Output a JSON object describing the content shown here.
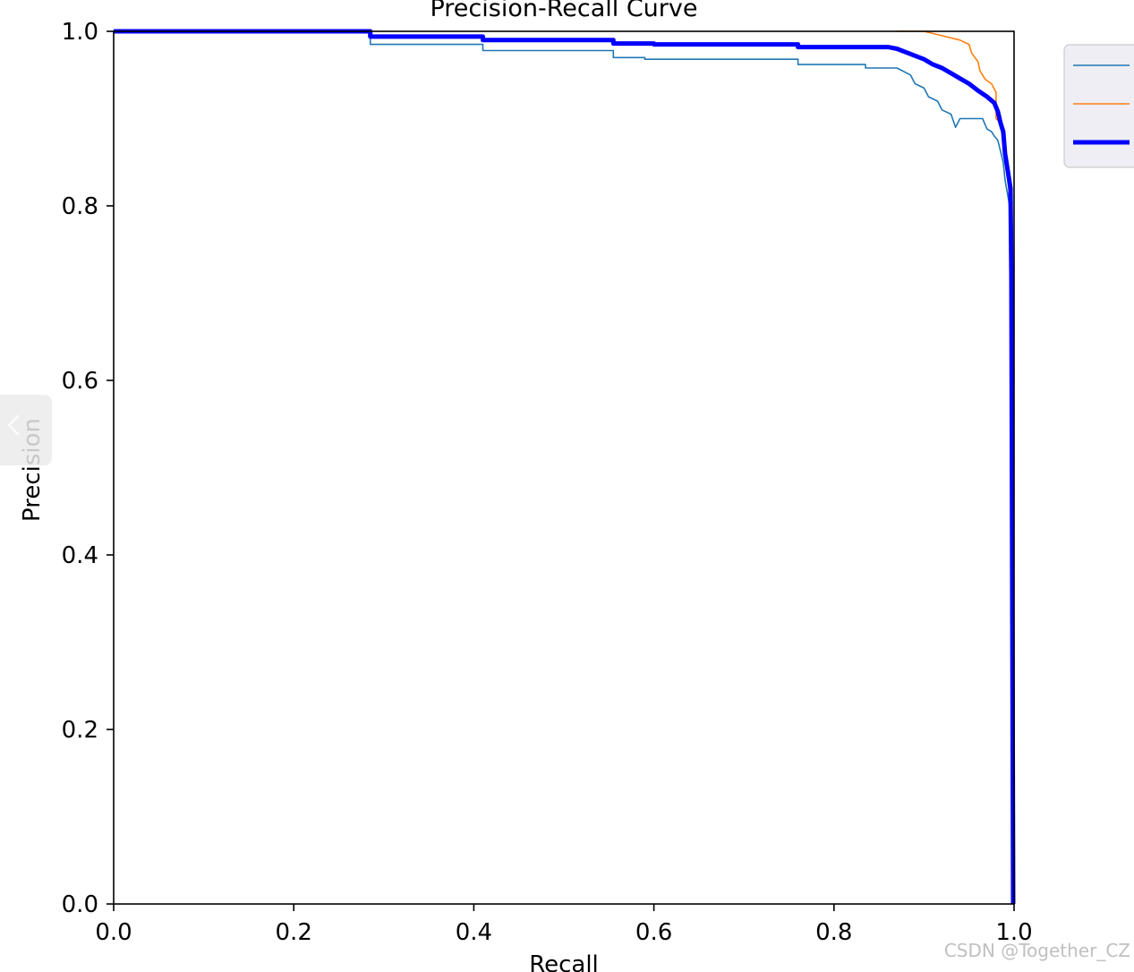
{
  "chart_data": {
    "type": "line",
    "title": "Precision-Recall Curve",
    "xlabel": "Recall",
    "ylabel": "Precision",
    "xlim": [
      0.0,
      1.0
    ],
    "ylim": [
      0.0,
      1.0
    ],
    "xticks": [
      "0.0",
      "0.2",
      "0.4",
      "0.6",
      "0.8",
      "1.0"
    ],
    "yticks": [
      "0.0",
      "0.2",
      "0.4",
      "0.6",
      "0.8",
      "1.0"
    ],
    "grid": false,
    "legend_position": "outside-top-right",
    "series": [
      {
        "color": "#1f77b4",
        "points": [
          [
            0.0,
            1.0
          ],
          [
            0.285,
            1.0
          ],
          [
            0.285,
            0.985
          ],
          [
            0.41,
            0.985
          ],
          [
            0.41,
            0.978
          ],
          [
            0.555,
            0.978
          ],
          [
            0.555,
            0.97
          ],
          [
            0.59,
            0.97
          ],
          [
            0.59,
            0.968
          ],
          [
            0.76,
            0.968
          ],
          [
            0.76,
            0.962
          ],
          [
            0.835,
            0.962
          ],
          [
            0.835,
            0.958
          ],
          [
            0.87,
            0.958
          ],
          [
            0.885,
            0.95
          ],
          [
            0.89,
            0.94
          ],
          [
            0.9,
            0.935
          ],
          [
            0.905,
            0.925
          ],
          [
            0.915,
            0.92
          ],
          [
            0.92,
            0.91
          ],
          [
            0.93,
            0.905
          ],
          [
            0.935,
            0.89
          ],
          [
            0.94,
            0.9
          ],
          [
            0.965,
            0.9
          ],
          [
            0.97,
            0.888
          ],
          [
            0.975,
            0.885
          ],
          [
            0.978,
            0.88
          ],
          [
            0.982,
            0.875
          ],
          [
            0.988,
            0.85
          ],
          [
            0.99,
            0.83
          ],
          [
            0.995,
            0.8
          ],
          [
            0.996,
            0.7
          ],
          [
            0.997,
            0.3
          ],
          [
            0.998,
            0.0
          ]
        ]
      },
      {
        "color": "#ff7f0e",
        "points": [
          [
            0.87,
            1.0
          ],
          [
            0.9,
            1.0
          ],
          [
            0.92,
            0.995
          ],
          [
            0.94,
            0.99
          ],
          [
            0.95,
            0.985
          ],
          [
            0.953,
            0.975
          ],
          [
            0.96,
            0.965
          ],
          [
            0.962,
            0.955
          ],
          [
            0.965,
            0.95
          ],
          [
            0.968,
            0.945
          ],
          [
            0.975,
            0.94
          ],
          [
            0.98,
            0.93
          ],
          [
            0.98,
            0.9
          ],
          [
            0.985,
            0.895
          ],
          [
            0.988,
            0.875
          ],
          [
            0.99,
            0.85
          ],
          [
            0.993,
            0.83
          ],
          [
            0.996,
            0.8
          ],
          [
            0.997,
            0.7
          ],
          [
            0.998,
            0.3
          ],
          [
            0.999,
            0.0
          ]
        ]
      },
      {
        "color": "#0000ff",
        "points": [
          [
            0.0,
            1.0
          ],
          [
            0.285,
            1.0
          ],
          [
            0.285,
            0.994
          ],
          [
            0.41,
            0.994
          ],
          [
            0.41,
            0.99
          ],
          [
            0.555,
            0.99
          ],
          [
            0.555,
            0.986
          ],
          [
            0.6,
            0.986
          ],
          [
            0.6,
            0.985
          ],
          [
            0.76,
            0.985
          ],
          [
            0.76,
            0.982
          ],
          [
            0.86,
            0.982
          ],
          [
            0.87,
            0.98
          ],
          [
            0.88,
            0.976
          ],
          [
            0.89,
            0.972
          ],
          [
            0.9,
            0.968
          ],
          [
            0.91,
            0.962
          ],
          [
            0.92,
            0.958
          ],
          [
            0.93,
            0.952
          ],
          [
            0.94,
            0.946
          ],
          [
            0.95,
            0.94
          ],
          [
            0.96,
            0.932
          ],
          [
            0.97,
            0.925
          ],
          [
            0.978,
            0.918
          ],
          [
            0.982,
            0.908
          ],
          [
            0.985,
            0.895
          ],
          [
            0.988,
            0.885
          ],
          [
            0.99,
            0.86
          ],
          [
            0.993,
            0.84
          ],
          [
            0.996,
            0.82
          ],
          [
            0.997,
            0.72
          ],
          [
            0.998,
            0.35
          ],
          [
            0.999,
            0.0
          ]
        ]
      }
    ]
  },
  "watermark": "CSDN @Together_CZ",
  "icons": {
    "back": "chevron-left-icon"
  }
}
